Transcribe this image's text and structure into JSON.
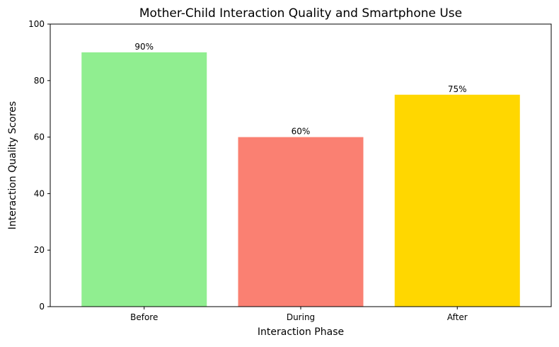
{
  "chart_data": {
    "type": "bar",
    "title": "Mother-Child Interaction Quality and Smartphone Use",
    "xlabel": "Interaction Phase",
    "ylabel": "Interaction Quality Scores",
    "categories": [
      "Before",
      "During",
      "After"
    ],
    "values": [
      90,
      60,
      75
    ],
    "data_labels": [
      "90%",
      "60%",
      "75%"
    ],
    "colors": [
      "#90ee90",
      "#fa8072",
      "#ffd700"
    ],
    "ylim": [
      0,
      100
    ],
    "yticks": [
      0,
      20,
      40,
      60,
      80,
      100
    ],
    "ytick_labels": [
      "0",
      "20",
      "40",
      "60",
      "80",
      "100"
    ],
    "grid": false,
    "legend": "none"
  }
}
